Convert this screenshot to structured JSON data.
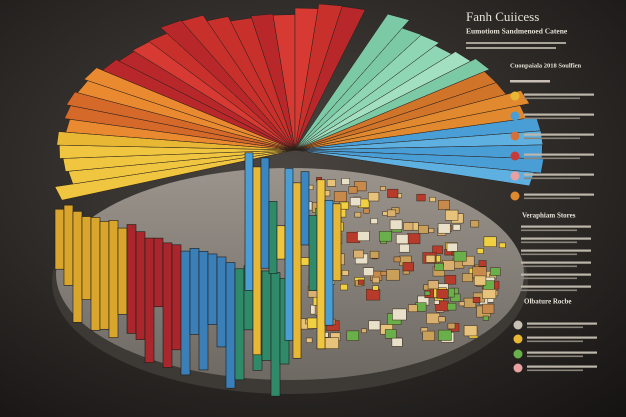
{
  "header": {
    "title": "Fanh Cuiicess",
    "subtitle": "Eumotiom Sandmenoed Catene"
  },
  "sections": [
    {
      "title": "Cuonpaiala 2018 Soulfien"
    },
    {
      "title": "Veraphiam Stores"
    },
    {
      "title": "Olbature Rocbe"
    }
  ]
}
